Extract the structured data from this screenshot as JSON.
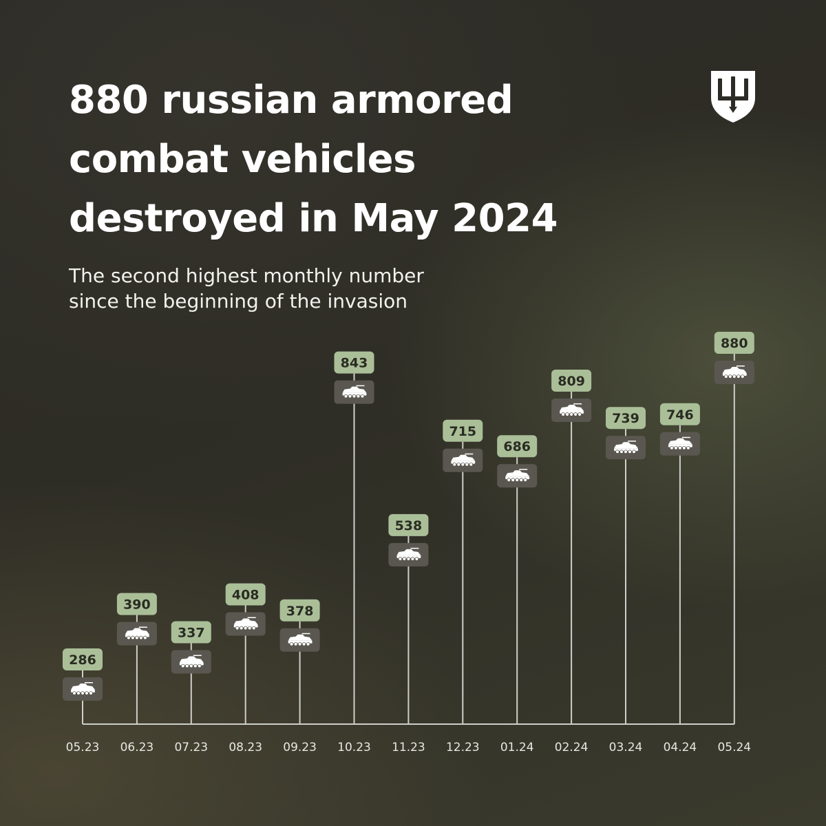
{
  "title_lines": [
    "880 russian armored",
    "combat vehicles",
    "destroyed in May 2024"
  ],
  "subtitle_lines": [
    "The second highest monthly number",
    "since the beginning of the invasion"
  ],
  "icons": {
    "emblem": "trident-shield-icon",
    "vehicle": "armored-vehicle-icon"
  },
  "colors": {
    "value_badge": "#aabf98",
    "icon_badge": "#5a5750",
    "line": "#cfcfcb",
    "text_light": "#ffffff",
    "badge_text": "#2a2b22"
  },
  "chart_data": {
    "type": "bar",
    "categories": [
      "05.23",
      "06.23",
      "07.23",
      "08.23",
      "09.23",
      "10.23",
      "11.23",
      "12.23",
      "01.24",
      "02.24",
      "03.24",
      "04.24",
      "05.24"
    ],
    "values": [
      286,
      390,
      337,
      408,
      378,
      843,
      538,
      715,
      686,
      809,
      739,
      746,
      880
    ],
    "title": "880 russian armored combat vehicles destroyed in May 2024",
    "subtitle": "The second highest monthly number since the beginning of the invasion"
  }
}
